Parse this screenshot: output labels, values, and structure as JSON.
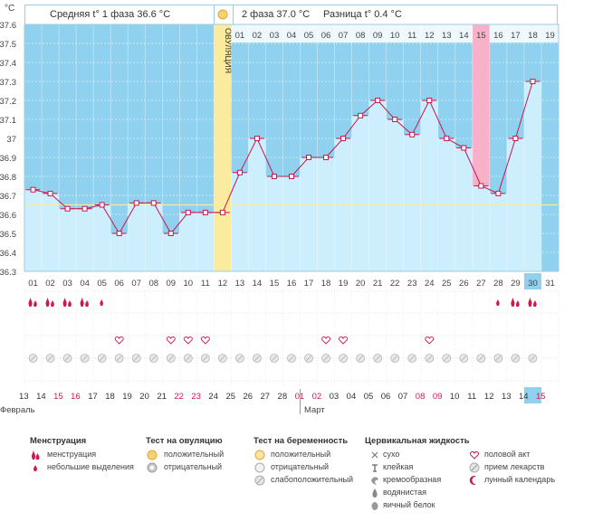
{
  "chart_data": {
    "type": "line",
    "y_unit": "°C",
    "ylim": [
      36.3,
      37.6
    ],
    "y_ticks": [
      "37.6",
      "37.5",
      "37.4",
      "37.3",
      "37.2",
      "37.1",
      "37",
      "36.9",
      "36.8",
      "36.7",
      "36.6",
      "36.5",
      "36.4",
      "36.3"
    ],
    "grid": true,
    "days": [
      "01",
      "02",
      "03",
      "04",
      "05",
      "06",
      "07",
      "08",
      "09",
      "10",
      "11",
      "12",
      "13",
      "14",
      "15",
      "16",
      "17",
      "18",
      "19",
      "20",
      "21",
      "22",
      "23",
      "24",
      "25",
      "26",
      "27",
      "28",
      "29",
      "30",
      "31"
    ],
    "temperatures": [
      36.73,
      36.71,
      36.63,
      36.63,
      36.65,
      36.5,
      36.66,
      36.66,
      36.5,
      36.61,
      36.61,
      36.61,
      36.82,
      37.0,
      36.8,
      36.8,
      36.9,
      36.9,
      37.0,
      37.12,
      37.2,
      37.1,
      37.02,
      37.2,
      37.0,
      36.95,
      36.75,
      36.71,
      37.0,
      37.3,
      null
    ],
    "ovulation_day_index": 11,
    "ovulation_label": "ОВУЛЯЦИЯ",
    "phase2_day_labels": [
      "01",
      "02",
      "03",
      "04",
      "05",
      "06",
      "07",
      "08",
      "09",
      "10",
      "11",
      "12",
      "13",
      "14",
      "15",
      "16",
      "17",
      "18",
      "19"
    ],
    "highlight_phase2_day": "15",
    "today_day": "30",
    "coverline": 36.65,
    "menstruation_large": [
      0,
      1,
      2,
      3,
      28,
      29
    ],
    "menstruation_small": [
      4,
      27
    ],
    "sex_days": [
      5,
      8,
      9,
      10,
      17,
      18,
      23
    ],
    "dates": [
      "13",
      "14",
      "15",
      "16",
      "17",
      "18",
      "19",
      "20",
      "21",
      "22",
      "23",
      "24",
      "25",
      "26",
      "27",
      "28",
      "01",
      "02",
      "03",
      "04",
      "05",
      "06",
      "07",
      "08",
      "09",
      "10",
      "11",
      "12",
      "13",
      "14",
      "15"
    ],
    "date_colors": [
      "#333",
      "#333",
      "#d0174f",
      "#d0174f",
      "#333",
      "#333",
      "#333",
      "#333",
      "#333",
      "#d0174f",
      "#d0174f",
      "#333",
      "#333",
      "#333",
      "#333",
      "#333",
      "#d0174f",
      "#d0174f",
      "#333",
      "#333",
      "#333",
      "#333",
      "#333",
      "#d0174f",
      "#d0174f",
      "#333",
      "#333",
      "#333",
      "#333",
      "#333",
      "#d0174f"
    ],
    "today_date": "14"
  },
  "header": {
    "phase1_label": "Средняя t° 1 фаза 36.6 °C",
    "phase2_label": "2 фаза 37.0 °C",
    "diff_label": "Разница t° 0.4 °C"
  },
  "months": {
    "feb": "Февраль",
    "mar": "Март"
  },
  "legend": {
    "menstruation": {
      "title": "Менструация",
      "items": [
        "менструация",
        "небольшие выделения"
      ]
    },
    "ovulation_test": {
      "title": "Тест на овуляцию",
      "items": [
        "положительный",
        "отрицательный"
      ]
    },
    "pregnancy_test": {
      "title": "Тест на беременность",
      "items": [
        "положительный",
        "отрицательный",
        "слабоположительный"
      ]
    },
    "cervical": {
      "title": "Цервикальная жидкость",
      "items": [
        "сухо",
        "клейкая",
        "кремообразная",
        "водянистая",
        "яичный белок"
      ]
    },
    "other": {
      "items": [
        "половой акт",
        "прием лекарств",
        "лунный календарь"
      ]
    }
  },
  "colors": {
    "plot_bg": "#8fd1ee",
    "bar_fill": "#cdeefc",
    "line": "#c8174f",
    "ovulation": "#fbeb9e",
    "highlight": "#f7b2c9",
    "today": "#8fd1ee",
    "grid": "#d5eaf2"
  }
}
